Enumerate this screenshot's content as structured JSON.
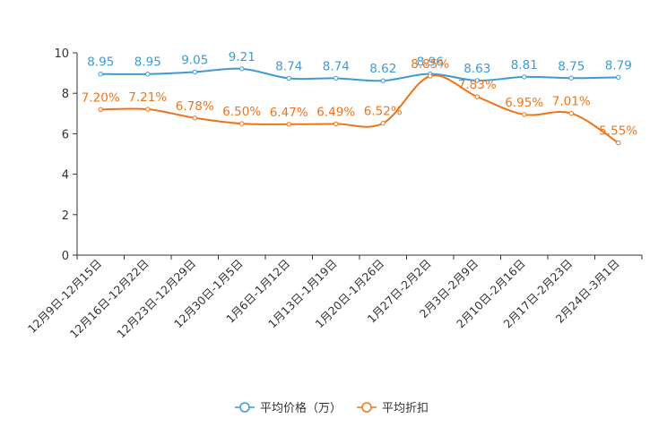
{
  "chart_data": {
    "type": "line",
    "title": "",
    "xlabel": "",
    "ylabel": "",
    "ylim": [
      0,
      10
    ],
    "yticks": [
      0,
      2,
      4,
      6,
      8,
      10
    ],
    "categories": [
      "12月9日-12月15日",
      "12月16日-12月22日",
      "12月23日-12月29日",
      "12月30日-1月5日",
      "1月6日-1月12日",
      "1月13日-1月19日",
      "1月20日-1月26日",
      "1月27日-2月2日",
      "2月3日-2月9日",
      "2月10日-2月16日",
      "2月17日-2月23日",
      "2月24日-3月1日"
    ],
    "series": [
      {
        "name": "平均价格（万）",
        "color": "#3d9bd1",
        "values": [
          8.95,
          8.95,
          9.05,
          9.21,
          8.74,
          8.74,
          8.62,
          8.96,
          8.63,
          8.81,
          8.75,
          8.79
        ],
        "labels": [
          "8.95",
          "8.95",
          "9.05",
          "9.21",
          "8.74",
          "8.74",
          "8.62",
          "8.96",
          "8.63",
          "8.81",
          "8.75",
          "8.79"
        ]
      },
      {
        "name": "平均折扣",
        "color": "#ef7419",
        "values": [
          7.2,
          7.21,
          6.78,
          6.5,
          6.47,
          6.49,
          6.52,
          8.85,
          7.83,
          6.95,
          7.01,
          5.55
        ],
        "labels": [
          "7.20%",
          "7.21%",
          "6.78%",
          "6.50%",
          "6.47%",
          "6.49%",
          "6.52%",
          "8.85%",
          "7.83%",
          "6.95%",
          "7.01%",
          "5.55%"
        ]
      }
    ],
    "legend_position": "bottom-center"
  }
}
